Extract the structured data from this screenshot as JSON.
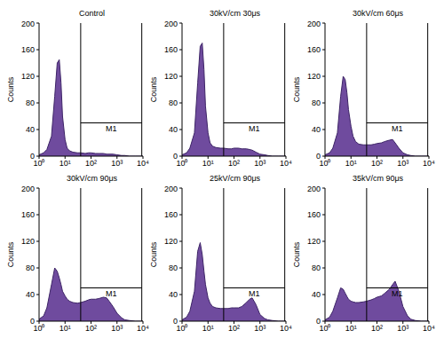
{
  "chart_data": [
    {
      "type": "area",
      "title": "Control",
      "log": "x",
      "color": "#6f4b9e",
      "ylabel": "Counts",
      "x": [
        1,
        1.5,
        2,
        3,
        4,
        5,
        6,
        7,
        8,
        10,
        12,
        15,
        20,
        30,
        40,
        60,
        80,
        100,
        150,
        200,
        300,
        400,
        500,
        700,
        1000,
        1500,
        2000,
        3000,
        5000,
        10000
      ],
      "values": [
        2,
        5,
        10,
        30,
        90,
        140,
        145,
        110,
        60,
        25,
        12,
        8,
        6,
        5,
        5,
        4,
        5,
        5,
        4,
        4,
        4,
        3,
        3,
        3,
        2,
        1,
        1,
        0,
        0,
        0
      ],
      "xlim": [
        1,
        10000
      ],
      "xticks": [
        {
          "value": 1,
          "label": "10⁰"
        },
        {
          "value": 10,
          "label": "10¹"
        },
        {
          "value": 100,
          "label": "10²"
        },
        {
          "value": 1000,
          "label": "10³"
        },
        {
          "value": 10000,
          "label": "10⁴"
        }
      ],
      "ylim": [
        0,
        200
      ],
      "yticks": [
        0,
        40,
        80,
        120,
        160,
        200
      ],
      "annotations": [
        {
          "text": "M1",
          "x": [
            40,
            9000
          ],
          "y": 50
        }
      ]
    },
    {
      "type": "area",
      "title": "30kV/cm 30μs",
      "log": "x",
      "color": "#6f4b9e",
      "ylabel": "Counts",
      "x": [
        1,
        1.5,
        2,
        3,
        4,
        5,
        6,
        7,
        8,
        10,
        12,
        15,
        20,
        30,
        40,
        60,
        80,
        100,
        150,
        200,
        300,
        400,
        500,
        700,
        1000,
        1500,
        2000,
        3000,
        5000,
        10000
      ],
      "values": [
        2,
        5,
        12,
        35,
        110,
        165,
        170,
        130,
        75,
        35,
        20,
        15,
        13,
        12,
        12,
        11,
        11,
        12,
        12,
        11,
        11,
        10,
        9,
        6,
        3,
        2,
        1,
        0,
        0,
        0
      ],
      "xlim": [
        1,
        10000
      ],
      "xticks": [
        {
          "value": 1,
          "label": "10⁰"
        },
        {
          "value": 10,
          "label": "10¹"
        },
        {
          "value": 100,
          "label": "10²"
        },
        {
          "value": 1000,
          "label": "10³"
        },
        {
          "value": 10000,
          "label": "10⁴"
        }
      ],
      "ylim": [
        0,
        200
      ],
      "yticks": [
        0,
        40,
        80,
        120,
        160,
        200
      ],
      "annotations": [
        {
          "text": "M1",
          "x": [
            40,
            9000
          ],
          "y": 50
        }
      ]
    },
    {
      "type": "area",
      "title": "30kV/cm 60μs",
      "log": "x",
      "color": "#6f4b9e",
      "ylabel": "Counts",
      "x": [
        1,
        1.5,
        2,
        3,
        4,
        5,
        6,
        7,
        8,
        10,
        12,
        15,
        20,
        30,
        40,
        60,
        80,
        100,
        150,
        200,
        300,
        400,
        500,
        700,
        1000,
        1500,
        2000,
        3000,
        5000,
        10000
      ],
      "values": [
        2,
        5,
        12,
        35,
        90,
        120,
        115,
        95,
        70,
        45,
        30,
        22,
        18,
        17,
        17,
        17,
        18,
        19,
        20,
        22,
        24,
        25,
        20,
        12,
        5,
        2,
        1,
        0,
        0,
        0
      ],
      "xlim": [
        1,
        10000
      ],
      "xticks": [
        {
          "value": 1,
          "label": "10⁰"
        },
        {
          "value": 10,
          "label": "10¹"
        },
        {
          "value": 100,
          "label": "10²"
        },
        {
          "value": 1000,
          "label": "10³"
        },
        {
          "value": 10000,
          "label": "10⁴"
        }
      ],
      "ylim": [
        0,
        200
      ],
      "yticks": [
        0,
        40,
        80,
        120,
        160,
        200
      ],
      "annotations": [
        {
          "text": "M1",
          "x": [
            40,
            9000
          ],
          "y": 50
        }
      ]
    },
    {
      "type": "area",
      "title": "30kV/cm 90μs",
      "log": "x",
      "color": "#6f4b9e",
      "ylabel": "Counts",
      "x": [
        1,
        1.5,
        2,
        3,
        4,
        5,
        6,
        7,
        8,
        10,
        12,
        15,
        20,
        30,
        40,
        60,
        80,
        100,
        150,
        200,
        300,
        400,
        500,
        700,
        1000,
        1500,
        2000,
        3000,
        5000,
        10000
      ],
      "values": [
        3,
        8,
        20,
        55,
        80,
        75,
        65,
        55,
        45,
        38,
        33,
        30,
        28,
        27,
        28,
        30,
        32,
        33,
        33,
        34,
        36,
        35,
        30,
        22,
        12,
        5,
        2,
        1,
        0,
        0
      ],
      "xlim": [
        1,
        10000
      ],
      "xticks": [
        {
          "value": 1,
          "label": "10⁰"
        },
        {
          "value": 10,
          "label": "10¹"
        },
        {
          "value": 100,
          "label": "10²"
        },
        {
          "value": 1000,
          "label": "10³"
        },
        {
          "value": 10000,
          "label": "10⁴"
        }
      ],
      "ylim": [
        0,
        200
      ],
      "yticks": [
        0,
        40,
        80,
        120,
        160,
        200
      ],
      "annotations": [
        {
          "text": "M1",
          "x": [
            40,
            9000
          ],
          "y": 50
        }
      ]
    },
    {
      "type": "area",
      "title": "25kV/cm 90μs",
      "log": "x",
      "color": "#6f4b9e",
      "ylabel": "Counts",
      "x": [
        1,
        1.5,
        2,
        3,
        4,
        5,
        6,
        7,
        8,
        10,
        12,
        15,
        20,
        30,
        40,
        60,
        80,
        100,
        150,
        200,
        300,
        400,
        500,
        700,
        1000,
        1500,
        2000,
        3000,
        5000,
        10000
      ],
      "values": [
        2,
        6,
        15,
        45,
        105,
        118,
        100,
        75,
        55,
        35,
        27,
        22,
        20,
        19,
        19,
        19,
        20,
        20,
        20,
        22,
        28,
        33,
        35,
        25,
        10,
        4,
        2,
        1,
        0,
        0
      ],
      "xlim": [
        1,
        10000
      ],
      "xticks": [
        {
          "value": 1,
          "label": "10⁰"
        },
        {
          "value": 10,
          "label": "10¹"
        },
        {
          "value": 100,
          "label": "10²"
        },
        {
          "value": 1000,
          "label": "10³"
        },
        {
          "value": 10000,
          "label": "10⁴"
        }
      ],
      "ylim": [
        0,
        200
      ],
      "yticks": [
        0,
        40,
        80,
        120,
        160,
        200
      ],
      "annotations": [
        {
          "text": "M1",
          "x": [
            40,
            9000
          ],
          "y": 50
        }
      ]
    },
    {
      "type": "area",
      "title": "35kV/cm 90μs",
      "log": "x",
      "color": "#6f4b9e",
      "ylabel": "Counts",
      "x": [
        1,
        1.5,
        2,
        3,
        4,
        5,
        6,
        7,
        8,
        10,
        12,
        15,
        20,
        30,
        40,
        60,
        80,
        100,
        150,
        200,
        300,
        400,
        500,
        700,
        1000,
        1500,
        2000,
        3000,
        5000,
        10000
      ],
      "values": [
        2,
        6,
        15,
        35,
        50,
        48,
        42,
        37,
        33,
        30,
        29,
        28,
        28,
        29,
        30,
        32,
        34,
        36,
        38,
        42,
        48,
        55,
        60,
        45,
        22,
        8,
        3,
        1,
        0,
        0
      ],
      "xlim": [
        1,
        10000
      ],
      "xticks": [
        {
          "value": 1,
          "label": "10⁰"
        },
        {
          "value": 10,
          "label": "10¹"
        },
        {
          "value": 100,
          "label": "10²"
        },
        {
          "value": 1000,
          "label": "10³"
        },
        {
          "value": 10000,
          "label": "10⁴"
        }
      ],
      "ylim": [
        0,
        200
      ],
      "yticks": [
        0,
        40,
        80,
        120,
        160,
        200
      ],
      "annotations": [
        {
          "text": "M1",
          "x": [
            40,
            9000
          ],
          "y": 50
        }
      ]
    }
  ]
}
